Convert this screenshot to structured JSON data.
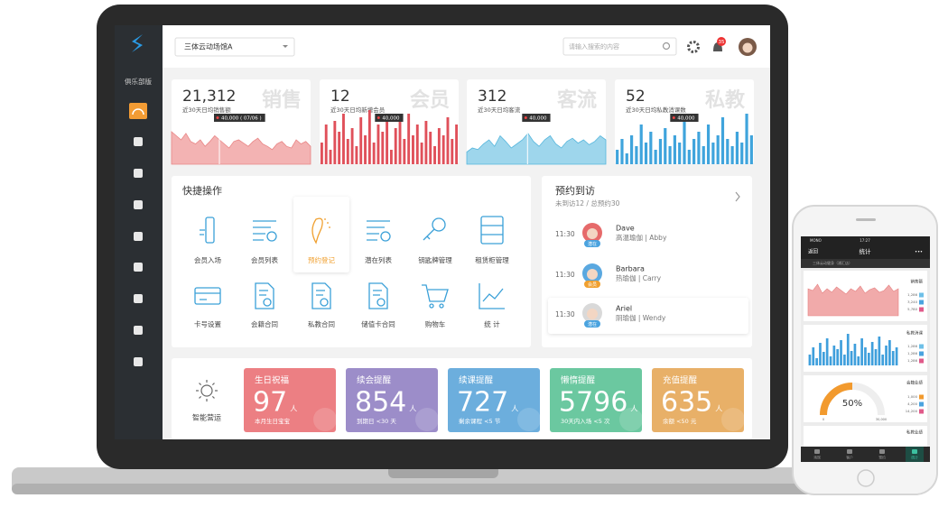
{
  "header": {
    "venue": "三体云动场馆A",
    "search_placeholder": "请输入搜索的内容",
    "notification_count": "35"
  },
  "sidebar": {
    "edition": "俱乐部版"
  },
  "stats": [
    {
      "value": "21,312",
      "name": "销售",
      "label": "近30天日均销售额",
      "tooltip": "40,000 ( 07/06 )",
      "spark": [
        40,
        35,
        30,
        38,
        28,
        25,
        30,
        22,
        28,
        35,
        30,
        25,
        20,
        28,
        30,
        26,
        22,
        28,
        32,
        25,
        22,
        18,
        25,
        28,
        22,
        20,
        30,
        25,
        28,
        22
      ]
    },
    {
      "value": "12",
      "name": "会员",
      "label": "近30天日均新增会员",
      "tooltip": "40,000",
      "spark": [
        30,
        55,
        20,
        60,
        45,
        70,
        35,
        50,
        25,
        65,
        40,
        75,
        30,
        55,
        45,
        60,
        20,
        50,
        65,
        35,
        70,
        40,
        55,
        30,
        60,
        45,
        25,
        50,
        40,
        65,
        35,
        55
      ]
    },
    {
      "value": "312",
      "name": "客流",
      "label": "近30天日均客流",
      "tooltip": "40,000",
      "spark": [
        15,
        20,
        18,
        25,
        30,
        22,
        35,
        28,
        20,
        25,
        30,
        38,
        28,
        22,
        30,
        35,
        25,
        20,
        28,
        32,
        26,
        30,
        24,
        28,
        35,
        30
      ]
    },
    {
      "value": "52",
      "name": "私教",
      "label": "近30天日均私教消课数",
      "tooltip": "40,000",
      "spark": [
        20,
        35,
        15,
        40,
        25,
        55,
        30,
        45,
        20,
        35,
        50,
        25,
        40,
        30,
        60,
        20,
        35,
        45,
        25,
        55,
        30,
        40,
        65,
        35,
        25,
        45,
        30,
        70,
        40
      ]
    }
  ],
  "quick_actions": {
    "title": "快捷操作",
    "items": [
      "会员入场",
      "会员列表",
      "预约登记",
      "潜在列表",
      "钥匙牌管理",
      "租赁柜管理",
      "卡号设置",
      "会籍合同",
      "私教合同",
      "储值卡合同",
      "购物车",
      "统 计"
    ]
  },
  "visits": {
    "title": "预约到访",
    "summary": "未到访12 / 总预约30",
    "rows": [
      {
        "time": "11:30",
        "name": "Dave",
        "detail": "高温瑜伽 | Abby",
        "tag": "潜在"
      },
      {
        "time": "11:30",
        "name": "Barbara",
        "detail": "热瑜伽 | Carry",
        "tag": "会员"
      },
      {
        "time": "11:30",
        "name": "Ariel",
        "detail": "阴瑜伽 | Wendy",
        "tag": "潜在"
      }
    ]
  },
  "operations": {
    "title": "智能营运",
    "cards": [
      {
        "title": "生日祝福",
        "count": "97",
        "unit": "人",
        "note": "本月生日宝宝"
      },
      {
        "title": "续会提醒",
        "count": "854",
        "unit": "人",
        "note": "到期日 <30 天"
      },
      {
        "title": "续课提醒",
        "count": "727",
        "unit": "人",
        "note": "剩余课程 <5 节"
      },
      {
        "title": "懒惰提醒",
        "count": "5796",
        "unit": "人",
        "note": "30天内入场 <5 次"
      },
      {
        "title": "充值提醒",
        "count": "635",
        "unit": "人",
        "note": "余额 <50 元"
      }
    ]
  },
  "phone": {
    "carrier": "MONO",
    "time": "17:27",
    "back": "返回",
    "title": "统计",
    "more": "•••",
    "location": "三体云动健身（浦汇店）",
    "sales": {
      "title": "销售额",
      "legend": [
        "1,286",
        "3,240",
        "5,780"
      ],
      "spark": [
        30,
        28,
        35,
        25,
        30,
        26,
        32,
        28,
        24,
        30,
        27,
        33,
        25,
        29,
        31,
        26,
        28,
        34,
        27,
        30
      ]
    },
    "coach": {
      "title": "私教消课",
      "legend": [
        "1,286",
        "1,286",
        "1,286"
      ],
      "spark": [
        12,
        20,
        8,
        25,
        15,
        30,
        10,
        22,
        18,
        28,
        12,
        35,
        16,
        24,
        10,
        30,
        20,
        14,
        26,
        18,
        32,
        12,
        22,
        28,
        16,
        20
      ]
    },
    "member": {
      "title": "会籍业绩",
      "gauge": {
        "value": 50,
        "label": "50%"
      },
      "min_label": "0",
      "max_label": "30,000",
      "legend": [
        "1,000",
        "4,200",
        "14,200"
      ]
    },
    "trainer": {
      "title": "私教业绩"
    },
    "tabs": [
      "场馆",
      "客户",
      "预约",
      "统计"
    ]
  }
}
